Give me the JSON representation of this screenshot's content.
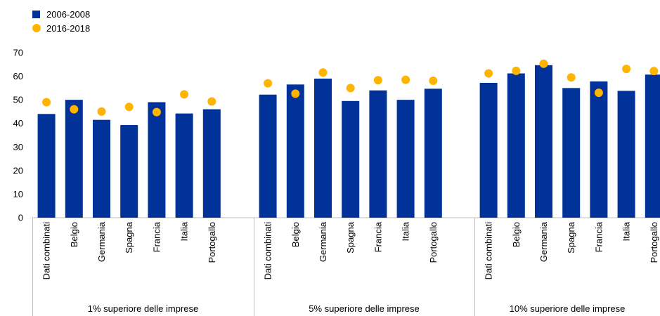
{
  "legend": {
    "series1": "2006-2008",
    "series2": "2016-2018"
  },
  "colors": {
    "series1": "#003299",
    "series2": "#FFB400",
    "axis": "#bfbfbf"
  },
  "chart_data": {
    "type": "bar",
    "title": "",
    "xlabel": "",
    "ylabel": "",
    "ylim": [
      0,
      70
    ],
    "yticks": [
      0,
      10,
      20,
      30,
      40,
      50,
      60,
      70
    ],
    "grid": false,
    "legend_position": "top-left",
    "groups": [
      {
        "label": "1% superiore delle imprese",
        "categories": [
          "Dati combinati",
          "Belgio",
          "Germania",
          "Spagna",
          "Francia",
          "Italia",
          "Portogallo"
        ]
      },
      {
        "label": "5% superiore delle imprese",
        "categories": [
          "Dati combinati",
          "Belgio",
          "Germania",
          "Spagna",
          "Francia",
          "Italia",
          "Portogallo"
        ]
      },
      {
        "label": "10% superiore delle imprese",
        "categories": [
          "Dati combinati",
          "Belgio",
          "Germania",
          "Spagna",
          "Francia",
          "Italia",
          "Portogallo"
        ]
      }
    ],
    "series": [
      {
        "name": "2006-2008",
        "type": "bar",
        "values": [
          [
            44,
            50,
            41.5,
            39.3,
            49,
            44.2,
            46
          ],
          [
            52.2,
            56.5,
            59,
            49.5,
            54,
            50,
            54.7
          ],
          [
            57.2,
            61.2,
            64.7,
            55,
            57.8,
            53.8,
            60.7
          ]
        ]
      },
      {
        "name": "2016-2018",
        "type": "scatter",
        "values": [
          [
            49,
            46,
            45,
            47,
            44.8,
            52.3,
            49.3
          ],
          [
            57,
            52.6,
            61.6,
            55,
            58.3,
            58.5,
            58.1
          ],
          [
            61.2,
            62.3,
            65.3,
            59.5,
            53,
            63.1,
            62.2
          ]
        ]
      }
    ]
  }
}
